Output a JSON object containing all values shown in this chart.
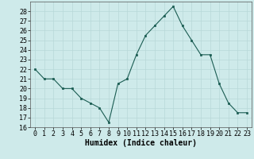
{
  "x": [
    0,
    1,
    2,
    3,
    4,
    5,
    6,
    7,
    8,
    9,
    10,
    11,
    12,
    13,
    14,
    15,
    16,
    17,
    18,
    19,
    20,
    21,
    22,
    23
  ],
  "y": [
    22,
    21,
    21,
    20,
    20,
    19,
    18.5,
    18,
    16.5,
    20.5,
    21,
    23.5,
    25.5,
    26.5,
    27.5,
    28.5,
    26.5,
    25,
    23.5,
    23.5,
    20.5,
    18.5,
    17.5,
    17.5
  ],
  "xlabel": "Humidex (Indice chaleur)",
  "ylim": [
    16,
    29
  ],
  "xlim": [
    -0.5,
    23.5
  ],
  "yticks": [
    16,
    17,
    18,
    19,
    20,
    21,
    22,
    23,
    24,
    25,
    26,
    27,
    28
  ],
  "xticks": [
    0,
    1,
    2,
    3,
    4,
    5,
    6,
    7,
    8,
    9,
    10,
    11,
    12,
    13,
    14,
    15,
    16,
    17,
    18,
    19,
    20,
    21,
    22,
    23
  ],
  "line_color": "#1a5c52",
  "marker_color": "#1a5c52",
  "bg_color": "#ceeaea",
  "grid_color": "#b8d8d8",
  "label_fontsize": 7,
  "tick_fontsize": 6
}
